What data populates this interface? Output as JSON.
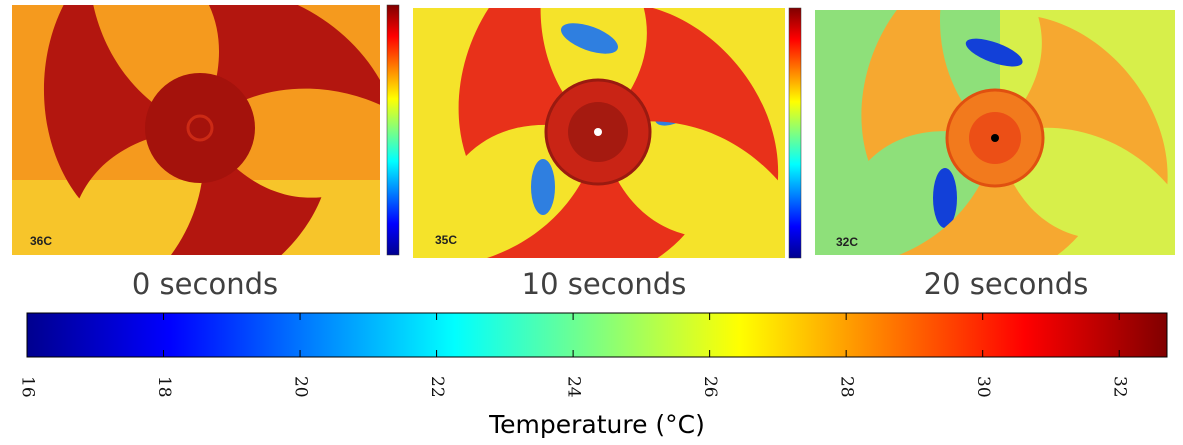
{
  "panels": [
    {
      "temp_label": "36C",
      "caption": "0 seconds"
    },
    {
      "temp_label": "35C",
      "caption": "10 seconds"
    },
    {
      "temp_label": "32C",
      "caption": "20 seconds"
    }
  ],
  "colorbar": {
    "label": "Temperature (°C)",
    "lim": [
      16,
      32.7
    ],
    "ticks": [
      16,
      18,
      20,
      22,
      24,
      26,
      28,
      30,
      32
    ]
  }
}
